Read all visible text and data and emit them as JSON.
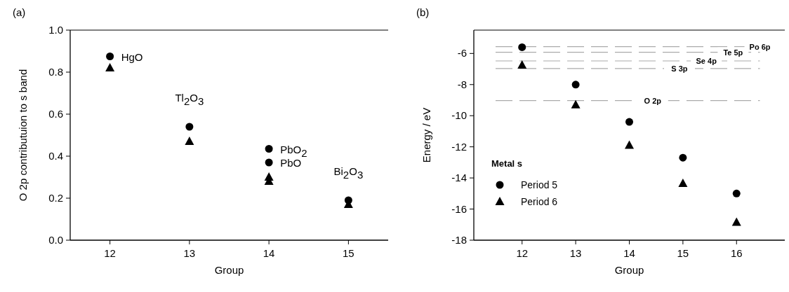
{
  "chart_data": [
    {
      "type": "scatter",
      "title": "(a)",
      "xlabel": "Group",
      "ylabel": "O 2p contributuion to s band",
      "xlim": [
        11.5,
        15.5
      ],
      "xticks": [
        12,
        13,
        14,
        15
      ],
      "ylim": [
        0,
        1
      ],
      "yticks": [
        {
          "value": 0,
          "label": "0.0"
        },
        0.2,
        0.4,
        0.6,
        0.8,
        {
          "value": 1,
          "label": "1.0"
        }
      ],
      "legend": false,
      "series": [
        {
          "color": "#000000",
          "marker": "circle",
          "x": [
            12,
            13,
            14,
            14,
            15
          ],
          "values": [
            0.875,
            0.54,
            0.435,
            0.37,
            0.19
          ]
        },
        {
          "color": "#000000",
          "marker": "triangle",
          "x": [
            12,
            13,
            14,
            14,
            15
          ],
          "values": [
            0.82,
            0.47,
            0.3,
            0.28,
            0.17
          ]
        }
      ],
      "annotations": [
        {
          "text": "HgO",
          "x": 12,
          "y": 0.875
        },
        {
          "text": "Tl$_{2}$O$_{3}$",
          "x": 13,
          "y": 0.54
        },
        {
          "text": "PbO$_{2}$",
          "x": 14,
          "y": 0.435
        },
        {
          "text": "PbO",
          "x": 14,
          "y": 0.37
        },
        {
          "text": "Bi$_{2}$O$_{3}$",
          "x": 15,
          "y": 0.19
        }
      ]
    },
    {
      "type": "scatter",
      "title": "(b)",
      "xlabel": "Group",
      "ylabel": "Energy / eV",
      "xlim": [
        11.1,
        16.9
      ],
      "xticks": [
        12,
        13,
        14,
        15,
        16
      ],
      "ylim": [
        -18,
        -4.5
      ],
      "yticks": [
        -18,
        -16,
        -14,
        -12,
        -10,
        -8,
        -6
      ],
      "legend": "bottom left",
      "legend_title": "Metal s",
      "series": [
        {
          "name": "Period 5",
          "color": "#000000",
          "marker": "circle",
          "x": [
            12,
            13,
            14,
            15,
            16
          ],
          "values": [
            -5.6,
            -8.0,
            -10.4,
            -12.7,
            -15.0
          ]
        },
        {
          "name": "Period 6",
          "color": "#000000",
          "marker": "triangle",
          "x": [
            12,
            13,
            14,
            15,
            16
          ],
          "values": [
            -6.75,
            -9.3,
            -11.9,
            -14.35,
            -16.85
          ]
        }
      ],
      "ref_lines": [
        {
          "axis": "y",
          "value": -5.56,
          "label": "Po 6p",
          "color": "#aaaaaa",
          "line_style": "dashed"
        },
        {
          "axis": "y",
          "value": -5.92,
          "label": "Te 5p",
          "color": "#aaaaaa",
          "line_style": "dashed"
        },
        {
          "axis": "y",
          "value": -6.48,
          "label": "Se 4p",
          "color": "#aaaaaa",
          "line_style": "dashed"
        },
        {
          "axis": "y",
          "value": -6.97,
          "label": "S 3p",
          "color": "#aaaaaa",
          "line_style": "dashed"
        },
        {
          "axis": "y",
          "value": -9.03,
          "label": "O 2p",
          "color": "#aaaaaa",
          "line_style": "dashed"
        }
      ]
    }
  ]
}
